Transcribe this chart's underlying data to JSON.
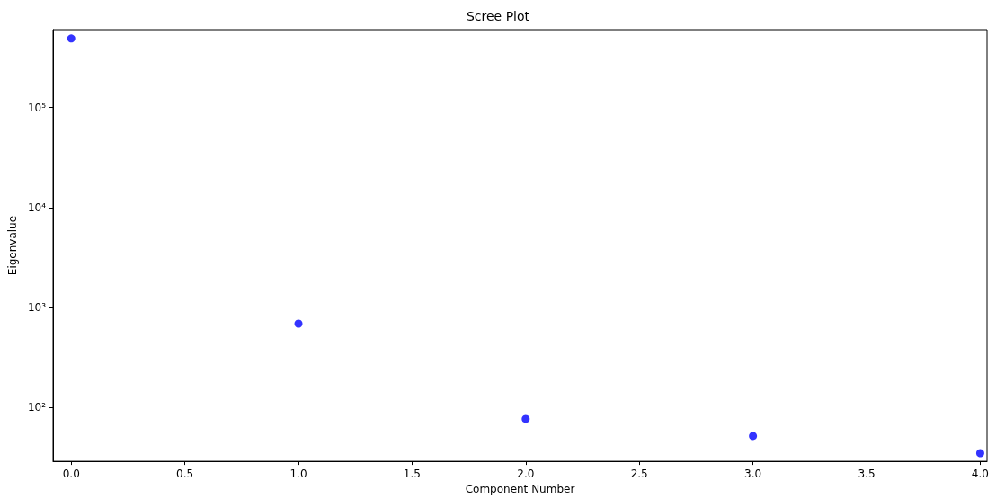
{
  "chart_data": {
    "type": "scatter",
    "title": "Scree Plot",
    "xlabel": "Component Number",
    "ylabel": "Eigenvalue",
    "x": [
      0,
      1,
      2,
      3,
      4
    ],
    "series": [
      {
        "color": "#0000ff",
        "values": [
          490000,
          690,
          77,
          52,
          35
        ]
      }
    ],
    "log": "y",
    "xlim": [
      -0.08,
      4.03
    ],
    "xticks": [
      {
        "value": 0,
        "label": "0.0"
      },
      {
        "value": 0.5,
        "label": "0.5"
      },
      {
        "value": 1,
        "label": "1.0"
      },
      {
        "value": 1.5,
        "label": "1.5"
      },
      {
        "value": 2,
        "label": "2.0"
      },
      {
        "value": 2.5,
        "label": "2.5"
      },
      {
        "value": 3,
        "label": "3.0"
      },
      {
        "value": 3.5,
        "label": "3.5"
      },
      {
        "value": 4,
        "label": "4.0"
      }
    ],
    "ylim": [
      29,
      600000
    ],
    "yticks": [
      {
        "value": 100,
        "label": "10²"
      },
      {
        "value": 1000,
        "label": "10³"
      },
      {
        "value": 10000,
        "label": "10⁴"
      },
      {
        "value": 100000,
        "label": "10⁵"
      }
    ],
    "marker": "circle",
    "grid": false
  }
}
